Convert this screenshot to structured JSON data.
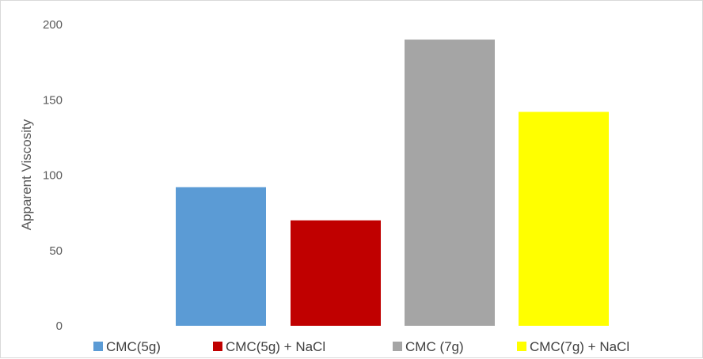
{
  "chart_data": {
    "type": "bar",
    "title": "",
    "xlabel": "",
    "ylabel": "Apparent Viscosity",
    "ylim": [
      0,
      200
    ],
    "yticks": [
      0,
      50,
      100,
      150,
      200
    ],
    "grid": false,
    "legend_position": "bottom",
    "categories": [
      ""
    ],
    "series": [
      {
        "name": "CMC(5g)",
        "values": [
          92
        ],
        "color": "#5B9BD5"
      },
      {
        "name": "CMC(5g) + NaCl",
        "values": [
          70
        ],
        "color": "#C00000"
      },
      {
        "name": "CMC (7g)",
        "values": [
          190
        ],
        "color": "#A5A5A5"
      },
      {
        "name": "CMC(7g) + NaCl",
        "values": [
          142
        ],
        "color": "#FFFF00"
      }
    ]
  }
}
